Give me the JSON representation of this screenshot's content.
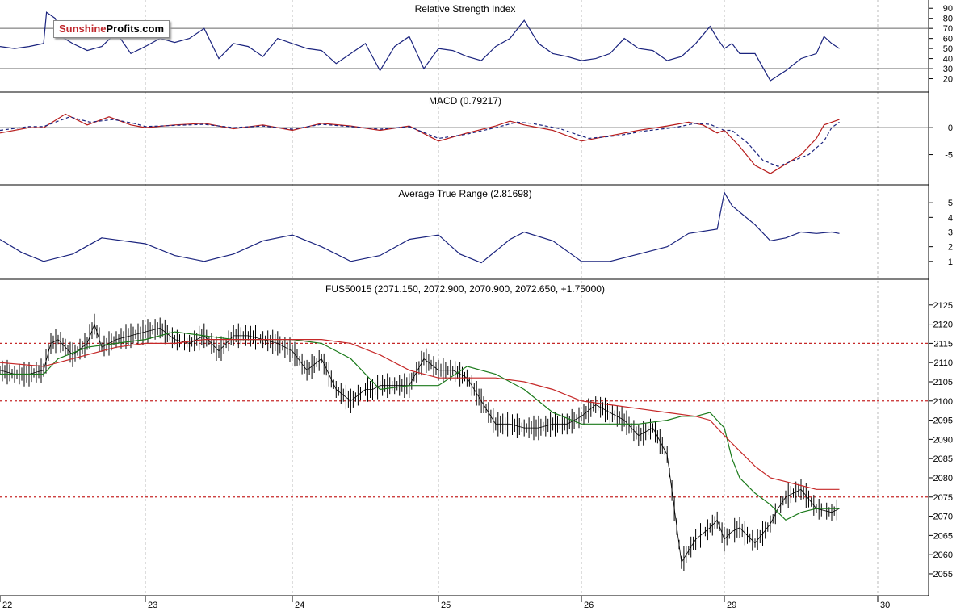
{
  "logo": {
    "part1": "Sunshine",
    "part2": "Profits.com"
  },
  "chart_data": [
    {
      "type": "line",
      "title": "Relative Strength Index",
      "yticks": [
        20,
        30,
        40,
        50,
        60,
        70,
        80,
        90
      ],
      "ylim": [
        10,
        95
      ],
      "reference_lines": [
        30,
        70
      ],
      "series": [
        {
          "color": "#1a237e",
          "x": [
            0.0,
            0.1,
            0.2,
            0.3,
            0.32,
            0.38,
            0.42,
            0.5,
            0.6,
            0.7,
            0.8,
            0.9,
            1.0,
            1.1,
            1.2,
            1.3,
            1.4,
            1.5,
            1.6,
            1.7,
            1.8,
            1.9,
            2.0,
            2.1,
            2.2,
            2.3,
            2.4,
            2.5,
            2.6,
            2.7,
            2.8,
            2.9,
            3.0,
            3.1,
            3.2,
            3.3,
            3.4,
            3.5,
            3.6,
            3.7,
            3.8,
            3.9,
            4.0,
            4.1,
            4.2,
            4.3,
            4.4,
            4.5,
            4.6,
            4.7,
            4.8,
            4.9,
            4.95,
            5.0,
            5.05,
            5.1,
            5.2,
            5.3,
            5.4,
            5.5,
            5.6,
            5.65,
            5.7,
            5.75
          ],
          "y": [
            52,
            50,
            52,
            55,
            86,
            80,
            62,
            55,
            48,
            52,
            66,
            45,
            52,
            60,
            56,
            60,
            70,
            40,
            55,
            52,
            42,
            60,
            55,
            50,
            48,
            35,
            45,
            55,
            28,
            52,
            62,
            30,
            50,
            48,
            42,
            38,
            52,
            60,
            78,
            55,
            45,
            42,
            38,
            40,
            45,
            60,
            50,
            48,
            38,
            42,
            55,
            72,
            60,
            50,
            55,
            45,
            45,
            18,
            28,
            40,
            45,
            62,
            55,
            50
          ]
        }
      ]
    },
    {
      "type": "line",
      "title": "MACD (0.79217)",
      "yticks": [
        -5,
        0
      ],
      "ylim": [
        -10,
        6
      ],
      "reference_lines": [
        0
      ],
      "series": [
        {
          "color": "#b71c1c",
          "style": "solid",
          "x": [
            0.0,
            0.2,
            0.3,
            0.45,
            0.6,
            0.75,
            0.9,
            1.0,
            1.2,
            1.4,
            1.6,
            1.8,
            2.0,
            2.2,
            2.4,
            2.6,
            2.8,
            3.0,
            3.2,
            3.4,
            3.5,
            3.6,
            3.8,
            4.0,
            4.2,
            4.4,
            4.6,
            4.75,
            4.85,
            4.95,
            5.0,
            5.1,
            5.2,
            5.3,
            5.5,
            5.6,
            5.65,
            5.75
          ],
          "y": [
            -1,
            0,
            0,
            2.5,
            0.5,
            2,
            0.5,
            0,
            0.5,
            0.8,
            -0.2,
            0.5,
            -0.5,
            0.8,
            0.3,
            -0.5,
            0.3,
            -2.5,
            -1,
            0.3,
            1.2,
            0.5,
            -0.5,
            -2.5,
            -1.5,
            -0.5,
            0.3,
            1,
            0.5,
            -1,
            -0.5,
            -3.5,
            -7,
            -8.5,
            -5,
            -2,
            0.5,
            1.5
          ]
        },
        {
          "color": "#1a237e",
          "style": "dashed",
          "x": [
            0.0,
            0.2,
            0.3,
            0.48,
            0.62,
            0.78,
            0.92,
            1.0,
            1.2,
            1.4,
            1.6,
            1.8,
            2.0,
            2.2,
            2.4,
            2.6,
            2.8,
            3.0,
            3.2,
            3.4,
            3.55,
            3.65,
            3.85,
            4.05,
            4.25,
            4.45,
            4.65,
            4.8,
            4.9,
            5.0,
            5.05,
            5.15,
            5.25,
            5.35,
            5.55,
            5.65,
            5.7,
            5.75
          ],
          "y": [
            -0.5,
            0.2,
            0.2,
            2,
            1,
            1.5,
            0.8,
            0.2,
            0.4,
            0.6,
            0,
            0.3,
            -0.3,
            0.6,
            0.2,
            -0.3,
            0.2,
            -2,
            -1.2,
            0,
            1,
            0.8,
            -0.2,
            -2,
            -1.5,
            -0.6,
            0,
            0.8,
            0.6,
            -0.5,
            -0.5,
            -2.8,
            -6,
            -7.2,
            -5,
            -2.5,
            0,
            1
          ]
        }
      ]
    },
    {
      "type": "line",
      "title": "Average True Range (2.81698)",
      "yticks": [
        1,
        2,
        3,
        4,
        5
      ],
      "ylim": [
        0,
        6
      ],
      "series": [
        {
          "color": "#1a237e",
          "x": [
            0.0,
            0.15,
            0.3,
            0.5,
            0.7,
            1.0,
            1.2,
            1.4,
            1.6,
            1.8,
            2.0,
            2.2,
            2.4,
            2.6,
            2.8,
            3.0,
            3.15,
            3.3,
            3.5,
            3.6,
            3.8,
            4.0,
            4.2,
            4.4,
            4.6,
            4.75,
            4.95,
            5.0,
            5.05,
            5.2,
            5.3,
            5.4,
            5.5,
            5.6,
            5.7,
            5.75
          ],
          "y": [
            2.5,
            1.6,
            1,
            1.5,
            2.6,
            2.2,
            1.4,
            1,
            1.5,
            2.4,
            2.8,
            2,
            1,
            1.4,
            2.5,
            2.8,
            1.5,
            0.9,
            2.5,
            3,
            2.4,
            1,
            1,
            1.5,
            2,
            2.9,
            3.2,
            5.7,
            4.8,
            3.5,
            2.4,
            2.6,
            3.0,
            2.9,
            3.0,
            2.9
          ]
        }
      ]
    },
    {
      "type": "candlestick",
      "title": "FUS50015 (2071.150, 2072.900, 2070.900, 2072.650, +1.75000)",
      "xticks": [
        "22",
        "23",
        "24",
        "25",
        "26",
        "29",
        "30"
      ],
      "yticks": [
        2055,
        2060,
        2065,
        2070,
        2075,
        2080,
        2085,
        2090,
        2095,
        2100,
        2105,
        2110,
        2115,
        2120,
        2125
      ],
      "ylim": [
        2051,
        2130
      ],
      "reference_lines": [
        2115,
        2100,
        2075
      ],
      "price": {
        "x": [
          0.0,
          0.1,
          0.2,
          0.3,
          0.35,
          0.4,
          0.45,
          0.5,
          0.6,
          0.65,
          0.7,
          0.8,
          0.9,
          1.0,
          1.1,
          1.2,
          1.3,
          1.4,
          1.5,
          1.6,
          1.7,
          1.8,
          1.9,
          2.0,
          2.1,
          2.2,
          2.3,
          2.4,
          2.5,
          2.55,
          2.6,
          2.7,
          2.8,
          2.9,
          3.0,
          3.1,
          3.2,
          3.3,
          3.4,
          3.45,
          3.5,
          3.6,
          3.7,
          3.8,
          3.9,
          4.0,
          4.1,
          4.2,
          4.3,
          4.4,
          4.5,
          4.6,
          4.65,
          4.7,
          4.8,
          4.9,
          4.95,
          5.0,
          5.05,
          5.1,
          5.2,
          5.3,
          5.35,
          5.4,
          5.5,
          5.6,
          5.7,
          5.75
        ],
        "y": [
          2108,
          2107,
          2107,
          2108,
          2115,
          2116,
          2114,
          2112,
          2115,
          2120,
          2114,
          2116,
          2117,
          2118,
          2119,
          2116,
          2115,
          2117,
          2113,
          2117,
          2117,
          2116,
          2115,
          2113,
          2108,
          2111,
          2103,
          2100,
          2103,
          2103,
          2104,
          2104,
          2104,
          2111,
          2108,
          2108,
          2106,
          2100,
          2094,
          2094,
          2094,
          2093,
          2093,
          2094,
          2094,
          2096,
          2099,
          2097,
          2095,
          2091,
          2093,
          2086,
          2072,
          2058,
          2064,
          2067,
          2069,
          2064,
          2066,
          2067,
          2063,
          2068,
          2072,
          2075,
          2077,
          2072,
          2071,
          2072
        ]
      },
      "moving_averages": [
        {
          "name": "",
          "color": "#1b7a1b",
          "x": [
            0.0,
            0.3,
            0.4,
            0.6,
            0.8,
            1.0,
            1.2,
            1.4,
            1.6,
            1.8,
            2.0,
            2.2,
            2.4,
            2.6,
            2.8,
            3.0,
            3.2,
            3.4,
            3.6,
            3.8,
            4.0,
            4.2,
            4.4,
            4.6,
            4.7,
            4.8,
            4.9,
            5.0,
            5.05,
            5.1,
            5.2,
            5.3,
            5.4,
            5.5,
            5.6,
            5.75
          ],
          "y": [
            2107,
            2107,
            2111,
            2114,
            2115,
            2116,
            2118,
            2117,
            2116,
            2116,
            2116,
            2115,
            2111,
            2103,
            2104,
            2104,
            2109,
            2107,
            2103,
            2097,
            2094,
            2094,
            2094,
            2095,
            2096,
            2096,
            2097,
            2093,
            2085,
            2080,
            2076,
            2073,
            2069,
            2071,
            2072,
            2072
          ]
        },
        {
          "name": "",
          "color": "#c62828",
          "x": [
            0.0,
            0.3,
            0.5,
            0.8,
            1.0,
            1.2,
            1.4,
            1.6,
            1.8,
            2.0,
            2.2,
            2.4,
            2.6,
            2.8,
            3.0,
            3.2,
            3.4,
            3.6,
            3.8,
            4.0,
            4.2,
            4.4,
            4.6,
            4.8,
            4.9,
            5.0,
            5.1,
            5.2,
            5.3,
            5.4,
            5.5,
            5.6,
            5.75
          ],
          "y": [
            2110,
            2109,
            2111,
            2114,
            2115,
            2115,
            2116,
            2116,
            2116,
            2116,
            2116,
            2115,
            2112,
            2108,
            2106,
            2106,
            2106,
            2105,
            2103,
            2100,
            2099,
            2098,
            2097,
            2096,
            2095,
            2091,
            2087,
            2083,
            2080,
            2079,
            2078,
            2077,
            2077
          ]
        }
      ]
    }
  ]
}
